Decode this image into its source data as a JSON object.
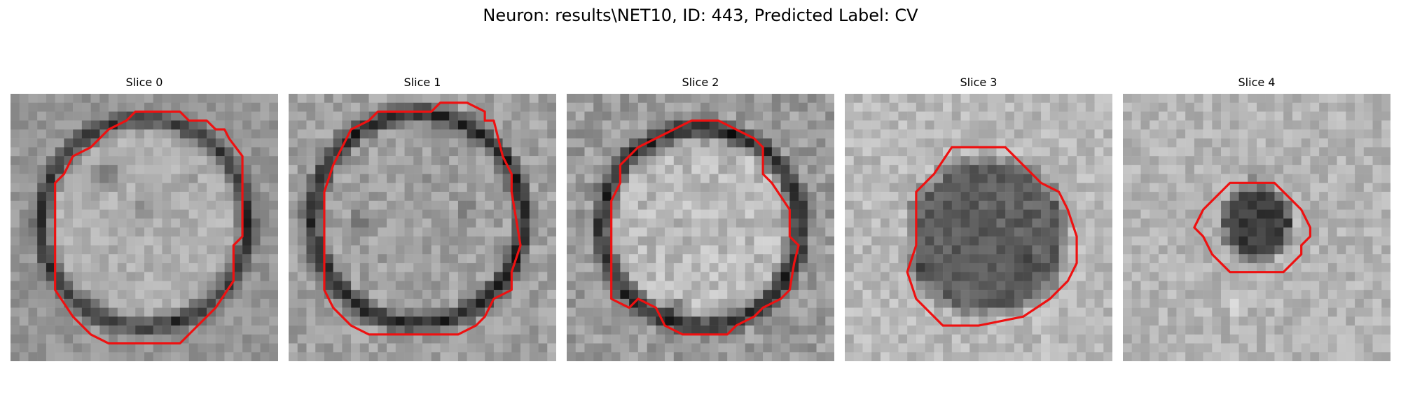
{
  "figure": {
    "title": "Neuron: results\\NET10, ID: 443, Predicted Label: CV"
  },
  "slices": [
    {
      "title": "Slice 0"
    },
    {
      "title": "Slice 1"
    },
    {
      "title": "Slice 2"
    },
    {
      "title": "Slice 3"
    },
    {
      "title": "Slice 4"
    }
  ],
  "colors": {
    "contour": "#ee1111",
    "background": "#ffffff"
  }
}
